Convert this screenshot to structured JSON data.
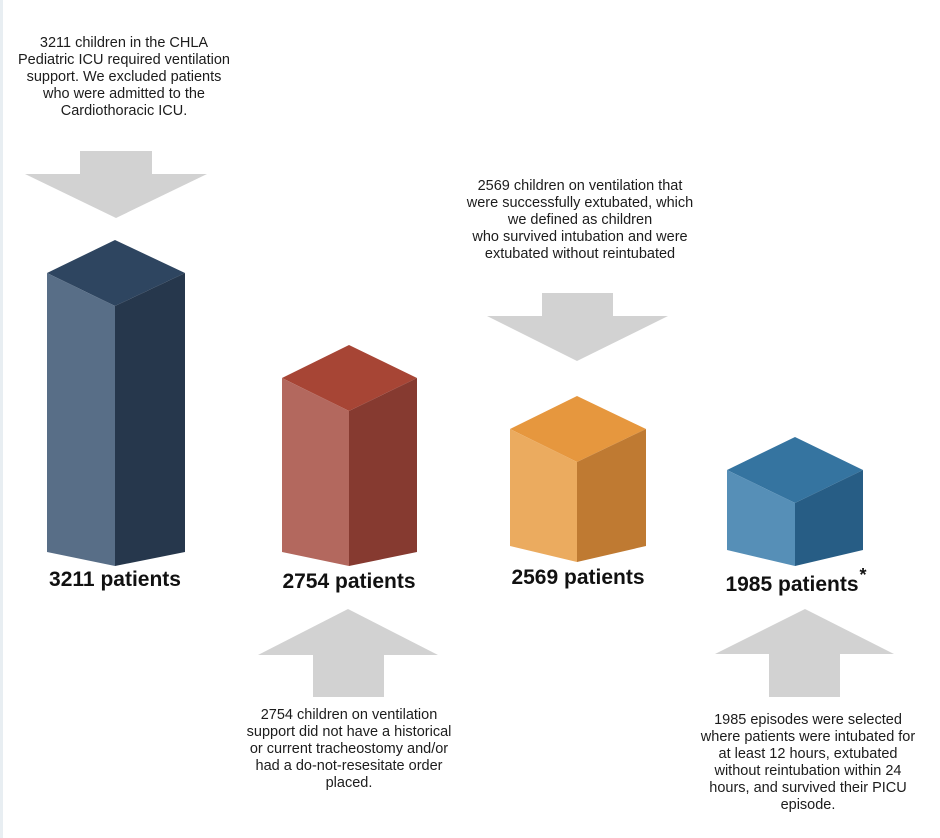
{
  "colors": {
    "arrow": "#d2d2d2",
    "navy_top": "#2e4560",
    "navy_left": "#586e87",
    "navy_right": "#26374c",
    "red_top": "#a74535",
    "red_left": "#b3685e",
    "red_right": "#863a30",
    "orange_top": "#e6973e",
    "orange_left": "#ebab5f",
    "orange_right": "#bf7a32",
    "blue_top": "#3574a0",
    "blue_left": "#568fb7",
    "blue_right": "#275d85"
  },
  "steps": [
    {
      "count_label": "3211 patients",
      "color": "navy",
      "arrow": "down",
      "note_lines": [
        "3211 children in the CHLA",
        "Pediatric ICU required ventilation",
        "support. We excluded patients",
        "who were admitted to the",
        "Cardiothoracic ICU."
      ]
    },
    {
      "count_label": "2754 patients",
      "color": "red",
      "arrow": "up",
      "note_lines": [
        "2754 children on ventilation",
        "support did not have a historical",
        "or current tracheostomy and/or",
        "had a do-not-resesitate order",
        "placed."
      ]
    },
    {
      "count_label": "2569 patients",
      "color": "orange",
      "arrow": "down",
      "note_lines": [
        "2569 children on ventilation that",
        "were successfully extubated, which",
        "we defined as children",
        "who survived intubation and were",
        "extubated without reintubated"
      ]
    },
    {
      "count_label": "1985 patients",
      "count_mark": "*",
      "color": "blue",
      "arrow": "up",
      "note_lines": [
        "1985 episodes were selected",
        "where patients were intubated for",
        "at least 12 hours, extubated",
        "without reintubation within 24",
        "hours, and survived their PICU",
        "episode."
      ]
    }
  ]
}
